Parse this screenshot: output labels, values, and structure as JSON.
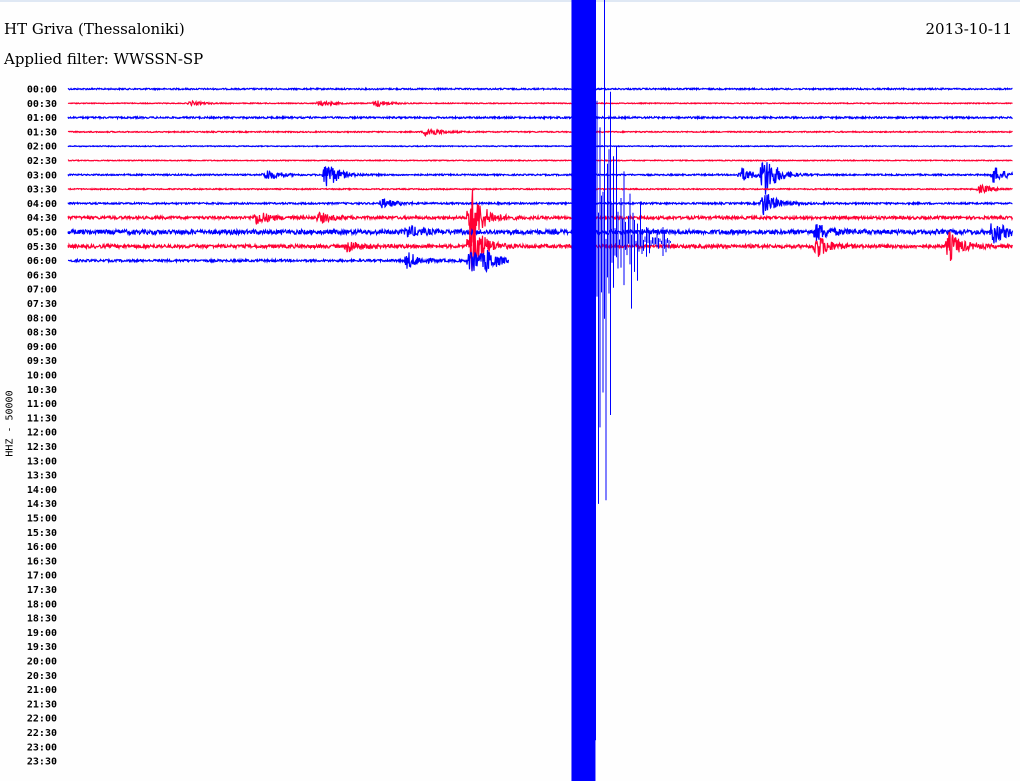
{
  "header": {
    "station": "HT Griva (Thessaloniki)",
    "filter": "Applied filter: WWSSN-SP",
    "date": "2013-10-11"
  },
  "chart_data": {
    "type": "line",
    "subtype": "helicorder",
    "ylabel": "HHZ - 50000",
    "row_minutes": 30,
    "row_labels": [
      "00:00",
      "00:30",
      "01:00",
      "01:30",
      "02:00",
      "02:30",
      "03:00",
      "03:30",
      "04:00",
      "04:30",
      "05:00",
      "05:30",
      "06:00",
      "06:30",
      "07:00",
      "07:30",
      "08:00",
      "08:30",
      "09:00",
      "09:30",
      "10:00",
      "10:30",
      "11:00",
      "11:30",
      "12:00",
      "12:30",
      "13:00",
      "13:30",
      "14:00",
      "14:30",
      "15:00",
      "15:30",
      "16:00",
      "16:30",
      "17:00",
      "17:30",
      "18:00",
      "18:30",
      "19:00",
      "19:30",
      "20:00",
      "20:30",
      "21:00",
      "21:30",
      "22:00",
      "22:30",
      "23:00",
      "23:30"
    ],
    "colors": [
      "#0000ff",
      "#ff0033"
    ],
    "data_end": {
      "row": "06:00",
      "minute": 14.0
    },
    "noise_level": [
      0.05,
      0.03,
      0.06,
      0.04,
      0.03,
      0.03,
      0.05,
      0.04,
      0.06,
      0.1,
      0.16,
      0.12,
      0.08
    ],
    "events": [
      {
        "row": "00:30",
        "minute": 3.9,
        "amplitude": 0.15
      },
      {
        "row": "00:30",
        "minute": 8.0,
        "amplitude": 0.2
      },
      {
        "row": "00:30",
        "minute": 9.8,
        "amplitude": 0.25
      },
      {
        "row": "01:30",
        "minute": 11.4,
        "amplitude": 0.4
      },
      {
        "row": "03:00",
        "minute": 6.3,
        "amplitude": 0.4
      },
      {
        "row": "03:00",
        "minute": 8.2,
        "amplitude": 1.0
      },
      {
        "row": "03:00",
        "minute": 21.4,
        "amplitude": 0.5
      },
      {
        "row": "03:00",
        "minute": 22.1,
        "amplitude": 1.6
      },
      {
        "row": "03:00",
        "minute": 29.4,
        "amplitude": 0.6
      },
      {
        "row": "03:30",
        "minute": 29.0,
        "amplitude": 0.3
      },
      {
        "row": "04:00",
        "minute": 10.0,
        "amplitude": 0.35
      },
      {
        "row": "04:00",
        "minute": 22.1,
        "amplitude": 0.9
      },
      {
        "row": "04:30",
        "minute": 6.0,
        "amplitude": 0.5
      },
      {
        "row": "04:30",
        "minute": 8.0,
        "amplitude": 0.35
      },
      {
        "row": "04:30",
        "minute": 12.8,
        "amplitude": 2.2
      },
      {
        "row": "05:00",
        "minute": 10.8,
        "amplitude": 0.4
      },
      {
        "row": "05:00",
        "minute": 16.0,
        "amplitude": 60
      },
      {
        "row": "05:00",
        "minute": 23.8,
        "amplitude": 0.6
      },
      {
        "row": "05:00",
        "minute": 29.4,
        "amplitude": 0.8
      },
      {
        "row": "05:30",
        "minute": 8.9,
        "amplitude": 0.4
      },
      {
        "row": "05:30",
        "minute": 12.8,
        "amplitude": 2.0
      },
      {
        "row": "05:30",
        "minute": 23.8,
        "amplitude": 0.8
      },
      {
        "row": "05:30",
        "minute": 28.0,
        "amplitude": 1.0
      },
      {
        "row": "06:00",
        "minute": 10.8,
        "amplitude": 0.6
      },
      {
        "row": "06:00",
        "minute": 12.8,
        "amplitude": 1.0
      },
      {
        "row": "06:00",
        "minute": 13.3,
        "amplitude": 0.6
      }
    ]
  }
}
